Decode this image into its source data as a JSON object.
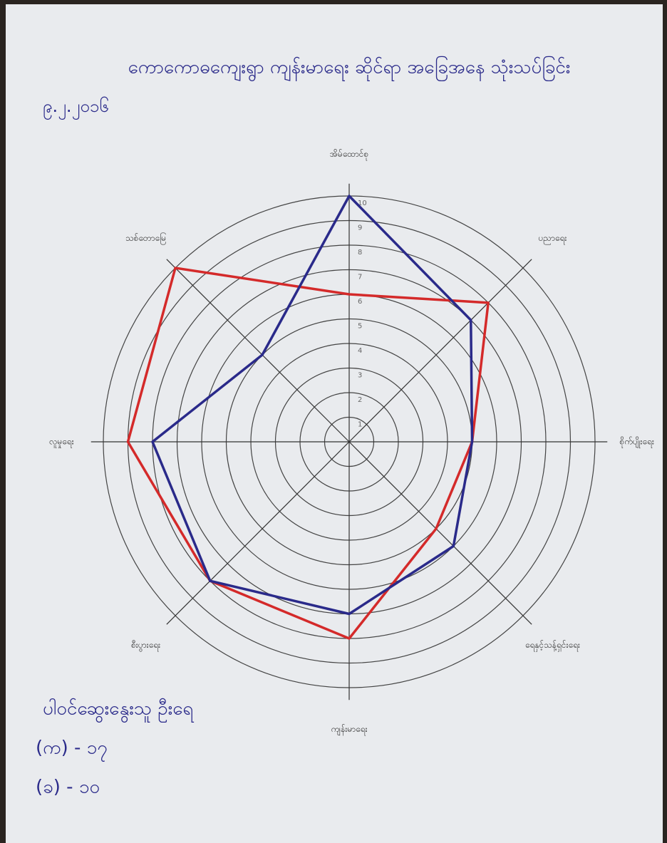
{
  "chart_data": {
    "type": "radar",
    "title": "ကောကောဓကျေးရွာ ကျန်းမာရေး ဆိုင်ရာ အခြေအနေ သုံးသပ်ခြင်း",
    "subtitle": "၉.၂.၂၀၁၆",
    "categories": [
      "အိမ်ထောင်စု",
      "ပညာရေး",
      "စိုက်ပျိုးရေး",
      "ရေနှင့်သန့်ရှင်းရေး",
      "ကျန်းမာရေး",
      "စီးပွားရေး",
      "လူမှုရေး",
      "သစ်တောမြေ"
    ],
    "series": [
      {
        "color": "#d42a2a",
        "values": [
          6,
          8,
          5,
          5,
          8,
          8,
          9,
          10
        ]
      },
      {
        "color": "#2a2a8a",
        "values": [
          10,
          7,
          5,
          6,
          7,
          8,
          8,
          5
        ]
      }
    ],
    "rlim": [
      0,
      10
    ],
    "rticks": [
      1,
      2,
      3,
      4,
      5,
      6,
      7,
      8,
      9,
      10
    ],
    "annotations": [
      "ပါဝင်ဆွေးနွေးသူ ဦးရေ",
      "(က) - ၁၇",
      "(ခ) - ၁၀"
    ]
  }
}
